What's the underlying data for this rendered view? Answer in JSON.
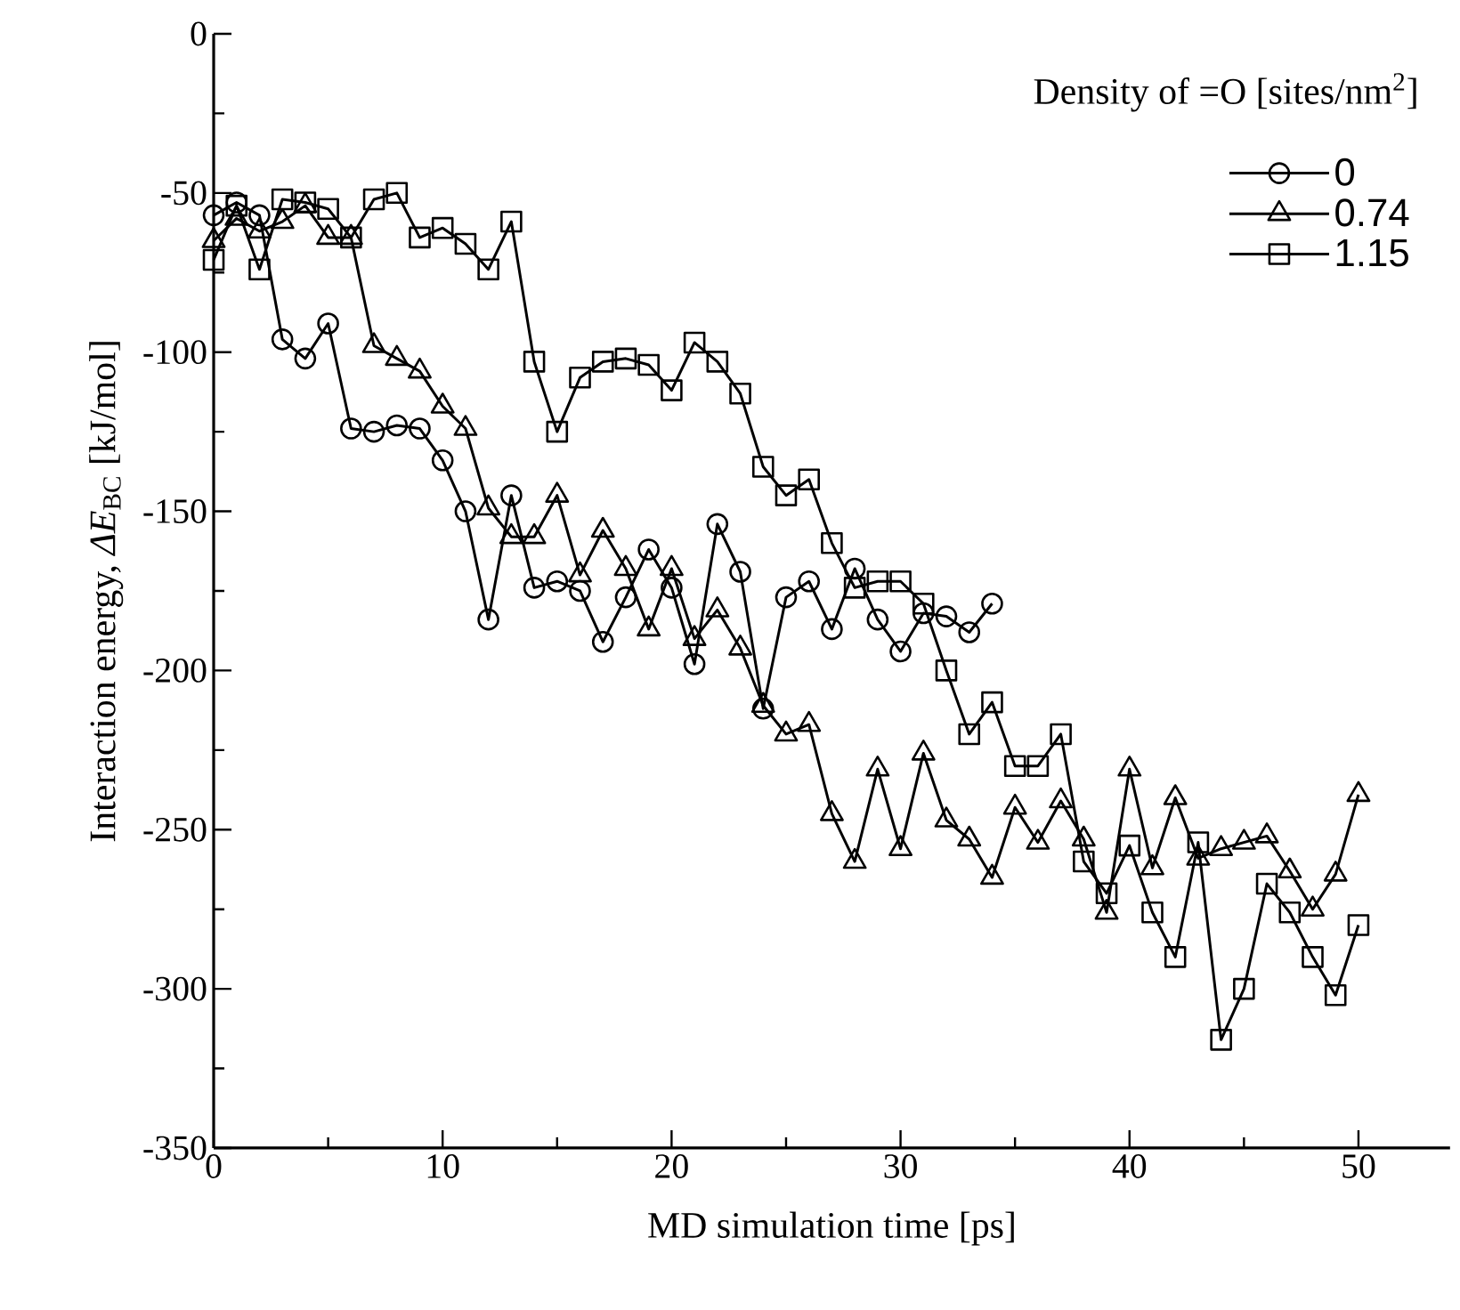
{
  "chart_data": {
    "type": "line",
    "xlabel": "MD simulation time  [ps]",
    "ylabel": "Interaction energy,  *ΔE*$_{BC}$  [kJ/mol]",
    "legend_title": "Density of =O [sites/nm$^{2}$]",
    "legend": "top right",
    "xlim": [
      0,
      54
    ],
    "xticks": [
      0,
      10,
      20,
      30,
      40,
      50
    ],
    "ylim": [
      -350,
      0
    ],
    "yticks": [
      -350,
      -300,
      -250,
      -200,
      -150,
      -100,
      -50,
      0
    ],
    "grid": false,
    "line_style": "solid",
    "x": [
      0,
      1,
      2,
      3,
      4,
      5,
      6,
      7,
      8,
      9,
      10,
      11,
      12,
      13,
      14,
      15,
      16,
      17,
      18,
      19,
      20,
      21,
      22,
      23,
      24,
      25,
      26,
      27,
      28,
      29,
      30,
      31,
      32,
      33,
      34,
      35,
      36,
      37,
      38,
      39,
      40,
      41,
      42,
      43,
      44,
      45,
      46,
      47,
      48,
      49,
      50
    ],
    "series": [
      {
        "name": "0",
        "color": "#000000",
        "marker": "circle",
        "values": [
          -57,
          -53,
          -57,
          -96,
          -102,
          -91,
          -124,
          -125,
          -123,
          -124,
          -134,
          -150,
          -184,
          -145,
          -174,
          -172,
          -175,
          -191,
          -177,
          -162,
          -174,
          -198,
          -154,
          -169,
          -212,
          -177,
          -172,
          -187,
          -168,
          -184,
          -194,
          -182,
          -183,
          -188,
          -179,
          null,
          null,
          null,
          null,
          null,
          null,
          null,
          null,
          null,
          null,
          null,
          null,
          null,
          null,
          null,
          null
        ]
      },
      {
        "name": "0.74",
        "color": "#000000",
        "marker": "triangle",
        "values": [
          -65,
          -58,
          -62,
          -59,
          -54,
          -64,
          -64,
          -98,
          -102,
          -106,
          -117,
          -124,
          -149,
          -158,
          -158,
          -145,
          -170,
          -156,
          -168,
          -187,
          -168,
          -190,
          -181,
          -193,
          -211,
          -220,
          -217,
          -245,
          -260,
          -231,
          -256,
          -226,
          -247,
          -253,
          -265,
          -243,
          -254,
          -241,
          -253,
          -276,
          -231,
          -262,
          -240,
          -259,
          -256,
          -254,
          -252,
          -263,
          -275,
          -264,
          -239
        ]
      },
      {
        "name": "1.15",
        "color": "#000000",
        "marker": "square",
        "values": [
          -71,
          -54,
          -74,
          -52,
          -53,
          -55,
          -64,
          -52,
          -50,
          -64,
          -61,
          -66,
          -74,
          -59,
          -103,
          -125,
          -108,
          -103,
          -102,
          -104,
          -112,
          -97,
          -103,
          -113,
          -136,
          -145,
          -140,
          -160,
          -174,
          -172,
          -172,
          -179,
          -200,
          -220,
          -210,
          -230,
          -230,
          -220,
          -260,
          -270,
          -255,
          -276,
          -290,
          -254,
          -316,
          -300,
          -267,
          -276,
          -290,
          -302,
          -280
        ]
      }
    ]
  }
}
